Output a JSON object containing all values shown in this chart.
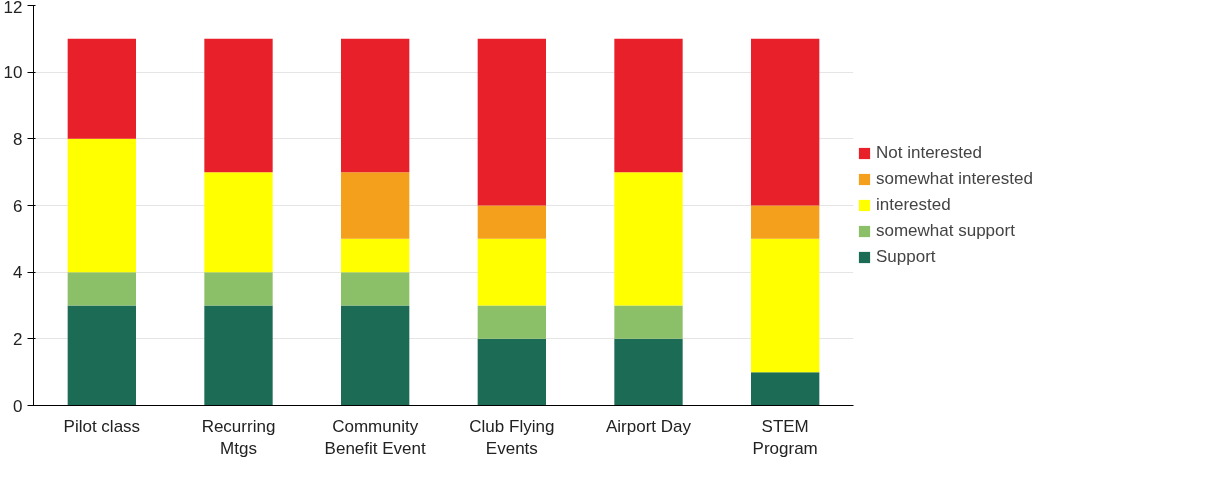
{
  "chart_data": {
    "type": "bar",
    "stacked": true,
    "categories": [
      "Pilot class",
      "Recurring\nMtgs",
      "Community\nBenefit Event",
      "Club Flying\nEvents",
      "Airport Day",
      "STEM\nProgram"
    ],
    "series": [
      {
        "name": "Support",
        "color": "#1b6b55",
        "values": [
          3,
          3,
          3,
          2,
          2,
          1
        ]
      },
      {
        "name": "somewhat support",
        "color": "#8cc068",
        "values": [
          1,
          1,
          1,
          1,
          1,
          0
        ]
      },
      {
        "name": "interested",
        "color": "#ffff00",
        "values": [
          4,
          3,
          1,
          2,
          4,
          4
        ]
      },
      {
        "name": "somewhat interested",
        "color": "#f5a01c",
        "values": [
          0,
          0,
          2,
          1,
          0,
          1
        ]
      },
      {
        "name": "Not interested",
        "color": "#e8202a",
        "values": [
          3,
          4,
          4,
          5,
          4,
          5
        ]
      }
    ],
    "ylim": [
      0,
      12
    ],
    "yticks": [
      0,
      2,
      4,
      6,
      8,
      10,
      12
    ],
    "grid": "y",
    "legend": "right"
  }
}
